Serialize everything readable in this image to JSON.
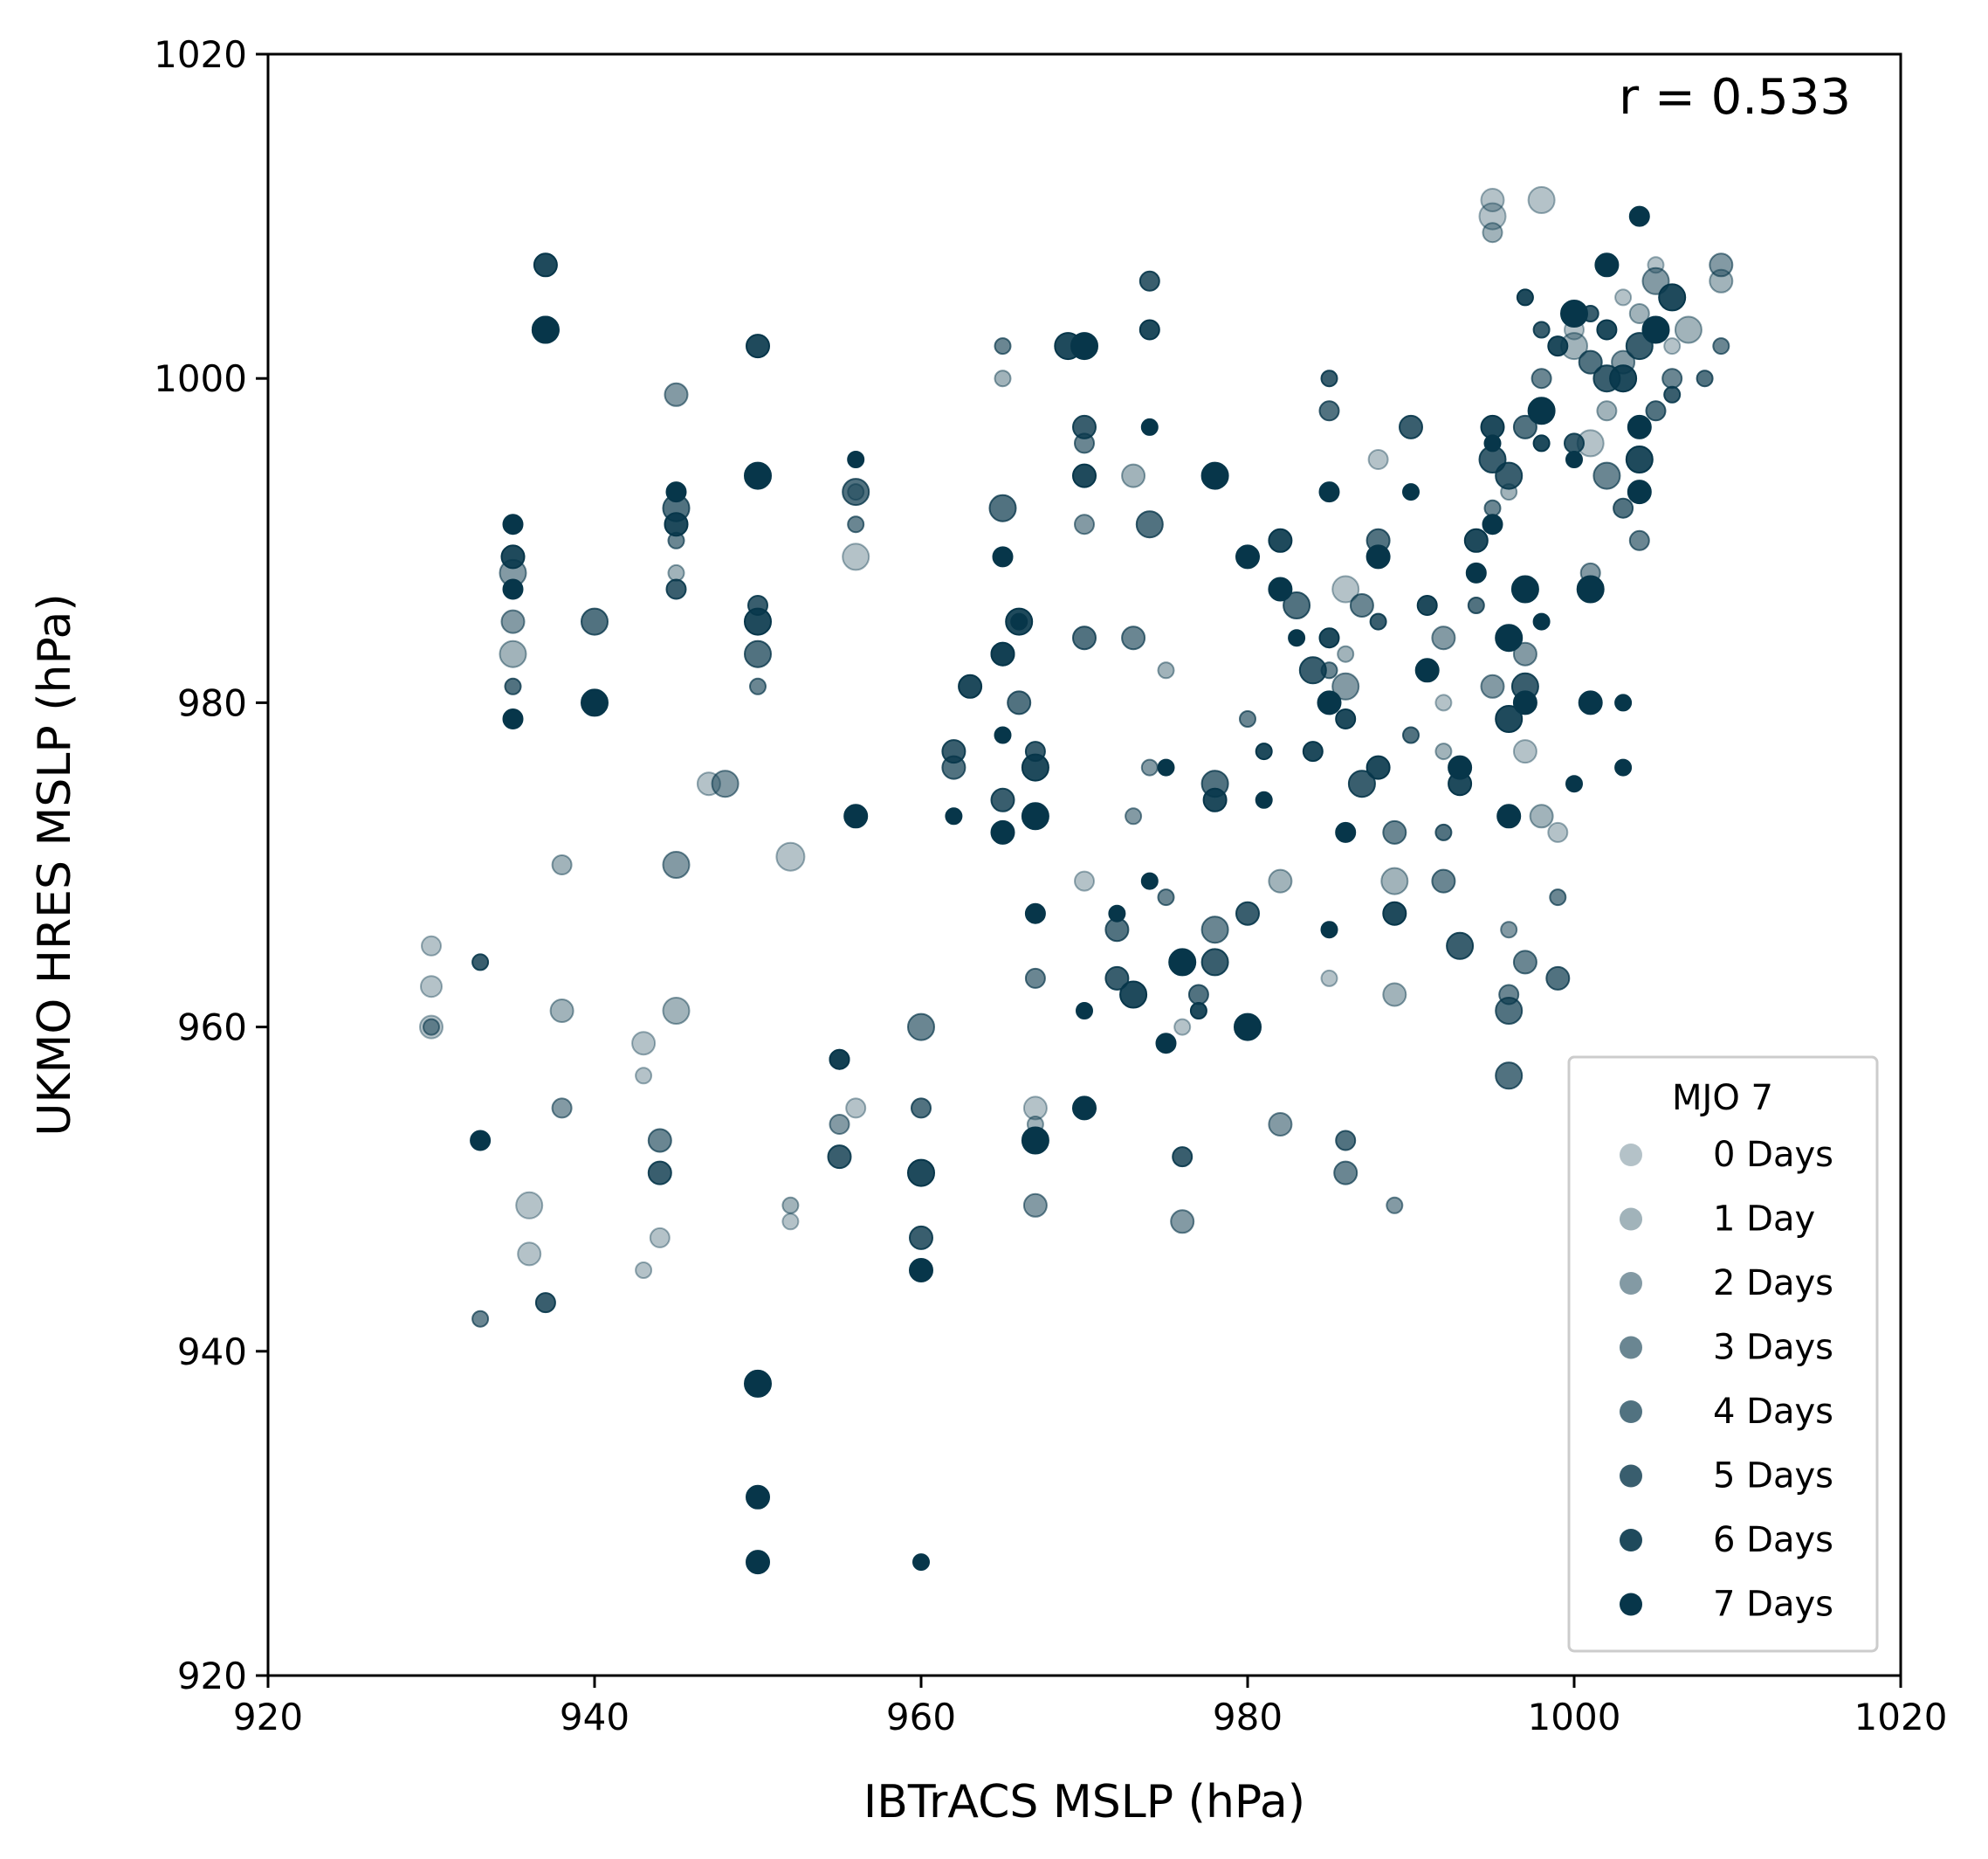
{
  "chart_data": {
    "type": "scatter",
    "xlabel": "IBTrACS MSLP (hPa)",
    "ylabel": "UKMO HRES MSLP (hPa)",
    "xlim": [
      920,
      1020
    ],
    "ylim": [
      920,
      1020
    ],
    "xticks": [
      "920",
      "940",
      "960",
      "980",
      "1000",
      "1020"
    ],
    "yticks": [
      "920",
      "940",
      "960",
      "980",
      "1000",
      "1020"
    ],
    "annotation": "r = 0.533",
    "grid": false,
    "legend": {
      "title": "MJO 7",
      "placement": "lower-right",
      "entries": [
        "0 Days",
        "1 Day",
        "2 Days",
        "3 Days",
        "4 Days",
        "5 Days",
        "6 Days",
        "7 Days"
      ]
    },
    "marker_color": "#07364a",
    "series": [
      {
        "name": "0 Days",
        "alpha": 0.3,
        "points": [
          [
            930,
            965
          ],
          [
            930,
            962.5
          ],
          [
            930,
            960
          ],
          [
            936,
            949
          ],
          [
            936,
            946
          ],
          [
            943,
            959
          ],
          [
            943,
            957
          ],
          [
            943,
            945
          ],
          [
            944,
            947
          ],
          [
            947,
            975
          ],
          [
            952,
            970.5
          ],
          [
            952,
            948
          ],
          [
            956,
            989
          ],
          [
            956,
            955
          ],
          [
            967,
            955
          ],
          [
            970,
            969
          ],
          [
            976,
            960
          ],
          [
            985,
            963
          ],
          [
            986,
            987
          ],
          [
            988,
            995
          ],
          [
            992,
            980
          ],
          [
            995,
            1011
          ],
          [
            995,
            1010
          ],
          [
            998,
            1011
          ],
          [
            997,
            977
          ],
          [
            999,
            972
          ],
          [
            1000,
            1003
          ],
          [
            1001,
            996
          ],
          [
            1003,
            1005
          ],
          [
            1005,
            1007
          ],
          [
            1006,
            1002
          ]
        ]
      },
      {
        "name": "1 Day",
        "alpha": 0.38,
        "points": [
          [
            935,
            983
          ],
          [
            938,
            970
          ],
          [
            938,
            961
          ],
          [
            945,
            988
          ],
          [
            945,
            961
          ],
          [
            952,
            949
          ],
          [
            956,
            993
          ],
          [
            965,
            1000
          ],
          [
            967,
            954
          ],
          [
            973,
            994
          ],
          [
            975,
            982
          ],
          [
            982,
            969
          ],
          [
            986,
            983
          ],
          [
            989,
            962
          ],
          [
            989,
            969
          ],
          [
            992,
            977
          ],
          [
            995,
            1009
          ],
          [
            996,
            993
          ],
          [
            998,
            973
          ],
          [
            1000,
            1002
          ],
          [
            1002,
            998
          ],
          [
            1004,
            1004
          ],
          [
            1007,
            1003
          ],
          [
            1009,
            1006
          ]
        ]
      },
      {
        "name": "2 Days",
        "alpha": 0.5,
        "points": [
          [
            930,
            960
          ],
          [
            935,
            988
          ],
          [
            935,
            985
          ],
          [
            938,
            955
          ],
          [
            945,
            999
          ],
          [
            945,
            970
          ],
          [
            948,
            975
          ],
          [
            955,
            958
          ],
          [
            955,
            954
          ],
          [
            965,
            983
          ],
          [
            967,
            949
          ],
          [
            970,
            991
          ],
          [
            973,
            973
          ],
          [
            974,
            976
          ],
          [
            976,
            948
          ],
          [
            982,
            954
          ],
          [
            986,
            981
          ],
          [
            989,
            949
          ],
          [
            992,
            984
          ],
          [
            995,
            981
          ],
          [
            996,
            966
          ],
          [
            997,
            983
          ],
          [
            1001,
            988
          ],
          [
            1003,
            1001
          ],
          [
            1005,
            1006
          ],
          [
            1009,
            1007
          ]
        ]
      },
      {
        "name": "3 Days",
        "alpha": 0.6,
        "points": [
          [
            933,
            942
          ],
          [
            937,
            1003
          ],
          [
            944,
            953
          ],
          [
            945,
            990
          ],
          [
            950,
            981
          ],
          [
            956,
            991
          ],
          [
            960,
            960
          ],
          [
            965,
            1002
          ],
          [
            967,
            963
          ],
          [
            970,
            996
          ],
          [
            973,
            984
          ],
          [
            975,
            968
          ],
          [
            978,
            966
          ],
          [
            980,
            979
          ],
          [
            985,
            982
          ],
          [
            986,
            951
          ],
          [
            987,
            986
          ],
          [
            989,
            972
          ],
          [
            992,
            969
          ],
          [
            995,
            992
          ],
          [
            996,
            962
          ],
          [
            997,
            964
          ],
          [
            998,
            1000
          ],
          [
            999,
            968
          ],
          [
            1002,
            994
          ],
          [
            1004,
            990
          ],
          [
            1006,
            1000
          ],
          [
            1009,
            1002
          ]
        ]
      },
      {
        "name": "4 Days",
        "alpha": 0.7,
        "points": [
          [
            935,
            981
          ],
          [
            940,
            985
          ],
          [
            945,
            992
          ],
          [
            950,
            983
          ],
          [
            956,
            993
          ],
          [
            960,
            955
          ],
          [
            962,
            976
          ],
          [
            965,
            992
          ],
          [
            966,
            980
          ],
          [
            970,
            984
          ],
          [
            972,
            966
          ],
          [
            974,
            991
          ],
          [
            977,
            962
          ],
          [
            978,
            975
          ],
          [
            983,
            986
          ],
          [
            985,
            998
          ],
          [
            986,
            953
          ],
          [
            988,
            990
          ],
          [
            990,
            978
          ],
          [
            992,
            972
          ],
          [
            994,
            986
          ],
          [
            996,
            961
          ],
          [
            996,
            957
          ],
          [
            997,
            997
          ],
          [
            999,
            963
          ],
          [
            1001,
            1001
          ],
          [
            1003,
            992
          ],
          [
            1005,
            998
          ],
          [
            1008,
            1000
          ]
        ]
      },
      {
        "name": "5 Days",
        "alpha": 0.8,
        "points": [
          [
            933,
            964
          ],
          [
            937,
            943
          ],
          [
            944,
            951
          ],
          [
            945,
            987
          ],
          [
            950,
            986
          ],
          [
            955,
            952
          ],
          [
            960,
            947
          ],
          [
            962,
            977
          ],
          [
            965,
            974
          ],
          [
            967,
            977
          ],
          [
            970,
            997
          ],
          [
            972,
            963
          ],
          [
            974,
            1006
          ],
          [
            976,
            952
          ],
          [
            978,
            964
          ],
          [
            980,
            967
          ],
          [
            984,
            982
          ],
          [
            985,
            1000
          ],
          [
            987,
            975
          ],
          [
            988,
            985
          ],
          [
            990,
            997
          ],
          [
            991,
            982
          ],
          [
            993,
            965
          ],
          [
            995,
            995
          ],
          [
            996,
            994
          ],
          [
            997,
            981
          ],
          [
            998,
            1003
          ],
          [
            1000,
            996
          ],
          [
            1001,
            1004
          ],
          [
            1002,
            1000
          ],
          [
            1004,
            1002
          ],
          [
            1006,
            999
          ]
        ]
      },
      {
        "name": "6 Days",
        "alpha": 0.9,
        "points": [
          [
            935,
            989
          ],
          [
            937,
            1007
          ],
          [
            945,
            991
          ],
          [
            950,
            1002
          ],
          [
            950,
            985
          ],
          [
            955,
            958
          ],
          [
            960,
            951
          ],
          [
            963,
            981
          ],
          [
            965,
            983
          ],
          [
            966,
            985
          ],
          [
            967,
            976
          ],
          [
            969,
            1002
          ],
          [
            970,
            994
          ],
          [
            973,
            962
          ],
          [
            974,
            1003
          ],
          [
            977,
            961
          ],
          [
            978,
            974
          ],
          [
            981,
            977
          ],
          [
            982,
            990
          ],
          [
            984,
            977
          ],
          [
            985,
            984
          ],
          [
            986,
            979
          ],
          [
            988,
            976
          ],
          [
            989,
            967
          ],
          [
            991,
            986
          ],
          [
            993,
            975
          ],
          [
            994,
            990
          ],
          [
            995,
            997
          ],
          [
            996,
            979
          ],
          [
            997,
            1005
          ],
          [
            998,
            996
          ],
          [
            999,
            1002
          ],
          [
            1000,
            1004
          ],
          [
            1002,
            1003
          ],
          [
            1003,
            1000
          ],
          [
            1004,
            995
          ],
          [
            1006,
            1005
          ]
        ]
      },
      {
        "name": "7 Days",
        "alpha": 1.0,
        "points": [
          [
            933,
            953
          ],
          [
            935,
            991
          ],
          [
            935,
            987
          ],
          [
            935,
            979
          ],
          [
            937,
            1003
          ],
          [
            940,
            980
          ],
          [
            945,
            993
          ],
          [
            950,
            994
          ],
          [
            950,
            938
          ],
          [
            950,
            931
          ],
          [
            950,
            927
          ],
          [
            956,
            973
          ],
          [
            956,
            995
          ],
          [
            960,
            945
          ],
          [
            960,
            927
          ],
          [
            962,
            973
          ],
          [
            965,
            989
          ],
          [
            965,
            972
          ],
          [
            965,
            978
          ],
          [
            966,
            985
          ],
          [
            967,
            967
          ],
          [
            967,
            973
          ],
          [
            967,
            953
          ],
          [
            970,
            1002
          ],
          [
            970,
            955
          ],
          [
            970,
            961
          ],
          [
            972,
            967
          ],
          [
            974,
            997
          ],
          [
            974,
            969
          ],
          [
            975,
            959
          ],
          [
            975,
            976
          ],
          [
            976,
            964
          ],
          [
            978,
            994
          ],
          [
            980,
            960
          ],
          [
            980,
            989
          ],
          [
            981,
            974
          ],
          [
            982,
            987
          ],
          [
            983,
            984
          ],
          [
            985,
            993
          ],
          [
            985,
            966
          ],
          [
            985,
            980
          ],
          [
            986,
            972
          ],
          [
            988,
            989
          ],
          [
            990,
            993
          ],
          [
            991,
            982
          ],
          [
            993,
            976
          ],
          [
            994,
            988
          ],
          [
            995,
            996
          ],
          [
            995,
            991
          ],
          [
            996,
            984
          ],
          [
            996,
            973
          ],
          [
            997,
            987
          ],
          [
            997,
            980
          ],
          [
            998,
            998
          ],
          [
            998,
            985
          ],
          [
            1000,
            995
          ],
          [
            1000,
            975
          ],
          [
            1000,
            1004
          ],
          [
            1001,
            980
          ],
          [
            1001,
            987
          ],
          [
            1002,
            1007
          ],
          [
            1003,
            980
          ],
          [
            1003,
            976
          ],
          [
            1004,
            993
          ],
          [
            1004,
            997
          ],
          [
            1004,
            1010
          ],
          [
            1005,
            1003
          ]
        ]
      }
    ]
  }
}
